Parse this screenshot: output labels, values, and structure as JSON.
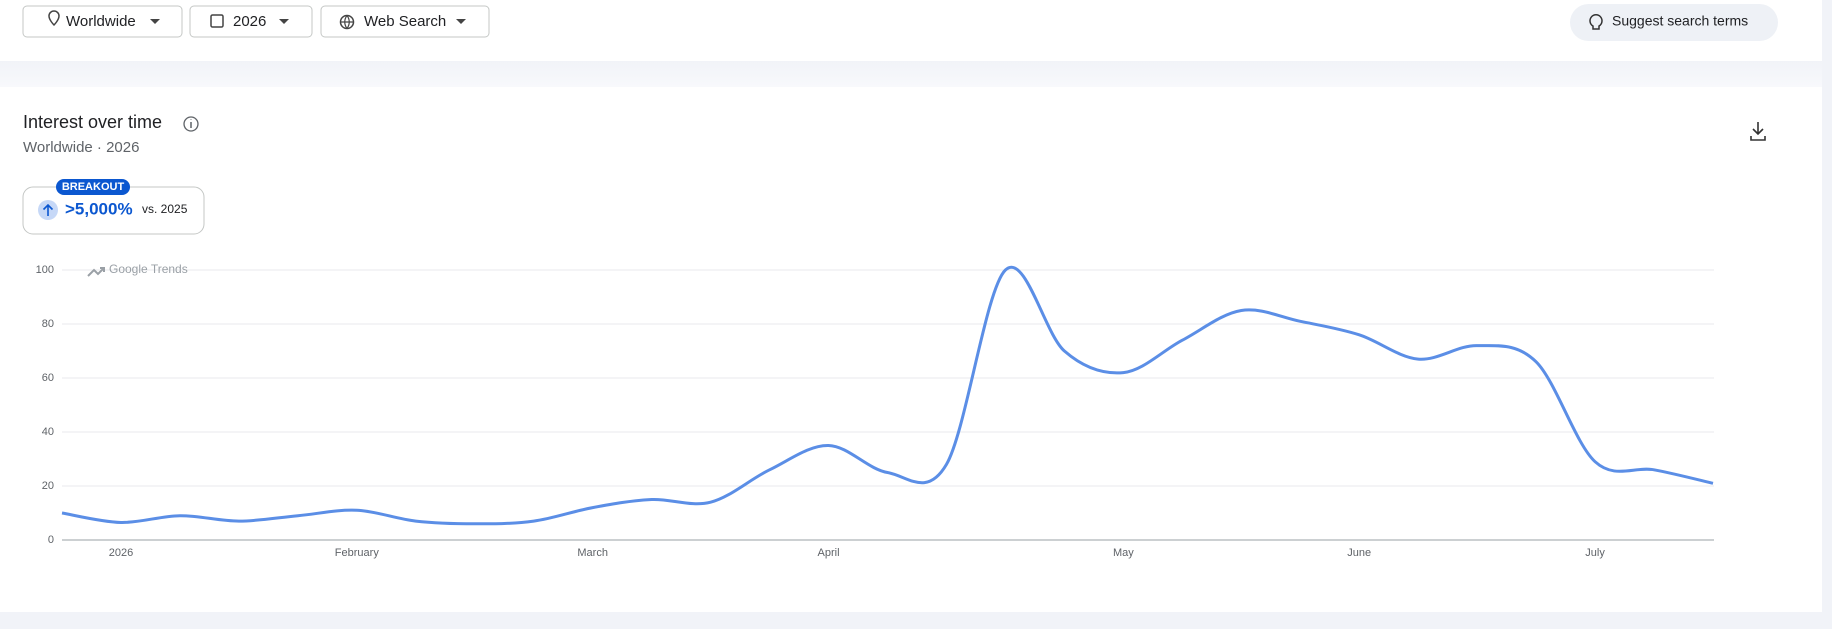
{
  "toolbar": {
    "filters": [
      "Worldwide",
      "2026",
      "Web Search"
    ],
    "suggest": "Suggest search terms"
  },
  "card": {
    "title": "Interest over time",
    "subtitle": "Worldwide · 2026",
    "badge": "BREAKOUT",
    "change": ">5,000%",
    "comparison": "vs. 2025",
    "watermark": "Google Trends"
  },
  "chart_data": {
    "type": "line",
    "categories": [
      null,
      "2026",
      null,
      null,
      null,
      "February",
      null,
      null,
      null,
      "March",
      null,
      null,
      null,
      "April",
      null,
      null,
      null,
      null,
      "May",
      null,
      null,
      null,
      "June",
      null,
      null,
      null,
      "July",
      null,
      null
    ],
    "values": [
      10,
      6.5,
      9,
      7,
      9,
      11,
      7,
      6,
      7,
      12,
      15,
      14,
      26,
      35,
      25,
      28,
      100,
      70,
      62,
      74,
      85,
      81,
      76,
      67,
      72,
      66,
      29,
      26,
      21
    ],
    "color": "#5b8ee6",
    "ylim": [
      0,
      100
    ],
    "yticks": [
      0,
      20,
      40,
      60,
      80,
      100
    ],
    "grid": true
  }
}
